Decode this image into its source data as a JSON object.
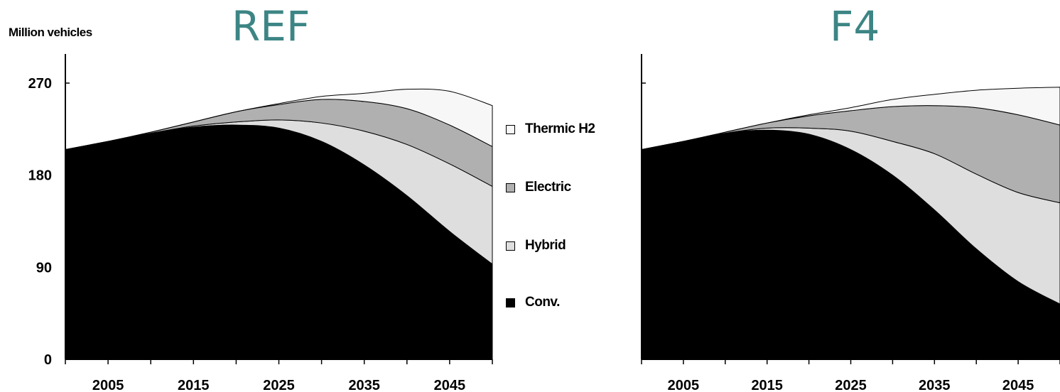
{
  "y_axis_title": "Million vehicles",
  "legend": [
    {
      "label": "Thermic H2",
      "color": "#f7f7f7"
    },
    {
      "label": "Electric",
      "color": "#b0b0b0"
    },
    {
      "label": "Hybrid",
      "color": "#dedede"
    },
    {
      "label": "Conv.",
      "color": "#000000"
    }
  ],
  "chart_data": [
    {
      "type": "area",
      "stacked": true,
      "title": "REF",
      "ylabel": "Million vehicles",
      "ylim": [
        0,
        270
      ],
      "yticks": [
        0,
        90,
        180,
        270
      ],
      "xlim": [
        2000,
        2050
      ],
      "xticks": [
        2005,
        2015,
        2025,
        2035,
        2045
      ],
      "x": [
        2000,
        2005,
        2010,
        2015,
        2020,
        2025,
        2030,
        2035,
        2040,
        2045,
        2050
      ],
      "series": [
        {
          "name": "Conv.",
          "color": "#000000",
          "values": [
            205,
            213,
            221,
            227,
            229,
            226,
            213,
            190,
            160,
            125,
            93
          ]
        },
        {
          "name": "Hybrid",
          "color": "#dedede",
          "values": [
            0,
            0,
            0,
            1,
            3,
            8,
            18,
            33,
            50,
            66,
            76
          ]
        },
        {
          "name": "Electric",
          "color": "#b0b0b0",
          "values": [
            0,
            0,
            1,
            4,
            10,
            15,
            23,
            29,
            35,
            38,
            39
          ]
        },
        {
          "name": "Thermic H2",
          "color": "#f7f7f7",
          "values": [
            0,
            0,
            0,
            0,
            0,
            1,
            3,
            8,
            19,
            33,
            40
          ]
        }
      ]
    },
    {
      "type": "area",
      "stacked": true,
      "title": "F4",
      "ylabel": "",
      "ylim": [
        0,
        270
      ],
      "yticks": [
        0,
        90,
        180,
        270
      ],
      "xlim": [
        2000,
        2050
      ],
      "xticks": [
        2005,
        2015,
        2025,
        2035,
        2045
      ],
      "x": [
        2000,
        2005,
        2010,
        2015,
        2020,
        2025,
        2030,
        2035,
        2040,
        2045,
        2050
      ],
      "series": [
        {
          "name": "Conv.",
          "color": "#000000",
          "values": [
            205,
            213,
            221,
            224,
            220,
            205,
            180,
            146,
            108,
            76,
            54
          ]
        },
        {
          "name": "Hybrid",
          "color": "#dedede",
          "values": [
            0,
            0,
            0,
            2,
            6,
            18,
            33,
            55,
            73,
            87,
            99
          ]
        },
        {
          "name": "Electric",
          "color": "#b0b0b0",
          "values": [
            0,
            0,
            1,
            5,
            12,
            20,
            34,
            47,
            65,
            76,
            76
          ]
        },
        {
          "name": "Thermic H2",
          "color": "#f7f7f7",
          "values": [
            0,
            0,
            0,
            0,
            1,
            3,
            7,
            11,
            17,
            26,
            37
          ]
        }
      ]
    }
  ]
}
